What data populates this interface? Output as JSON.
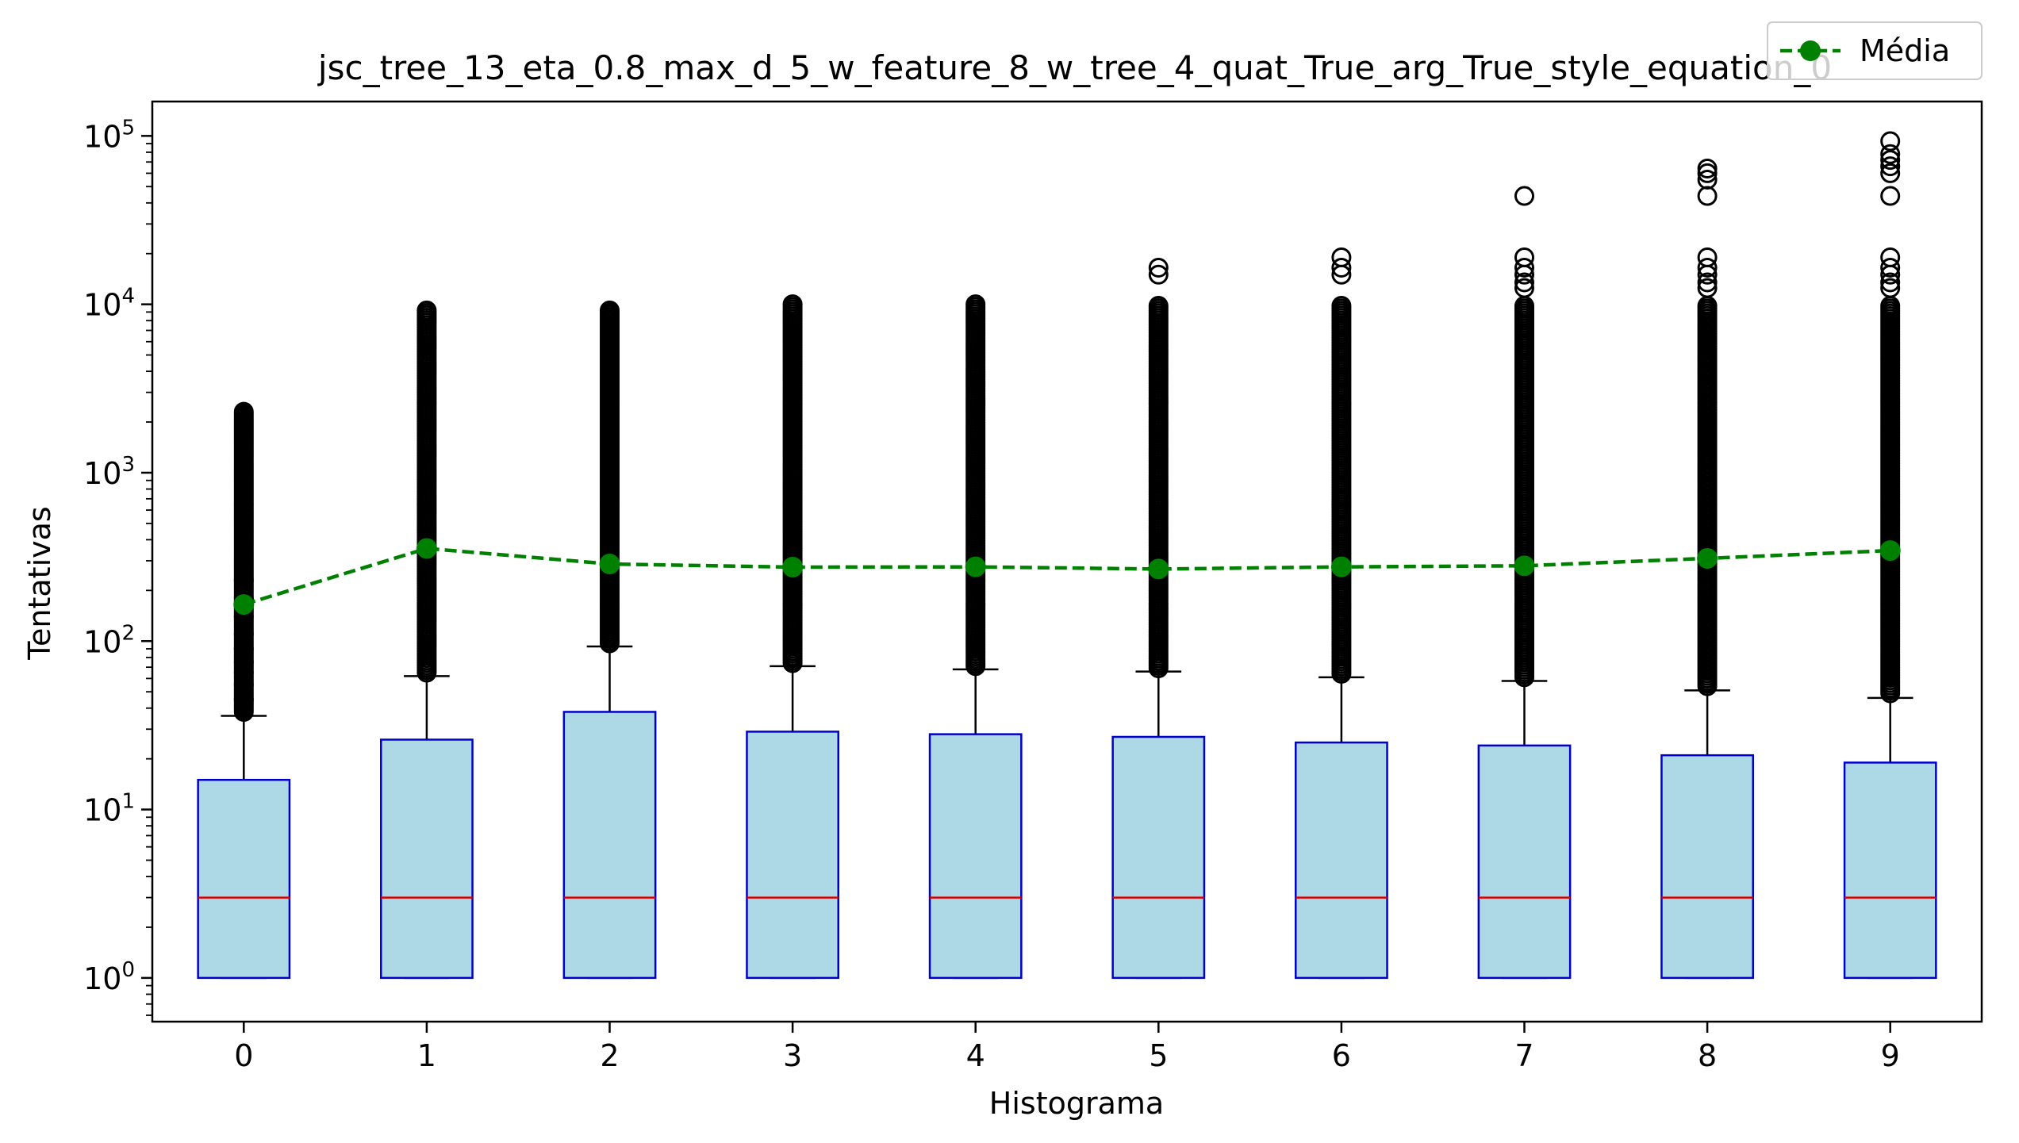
{
  "chart_data": {
    "type": "box",
    "title": "jsc_tree_13_eta_0.8_max_d_5_w_feature_8_w_tree_4_quat_True_arg_True_style_equation_0",
    "xlabel": "Histograma",
    "ylabel": "Tentativas",
    "yscale": "log",
    "ylim": [
      0.55,
      160000
    ],
    "categories": [
      "0",
      "1",
      "2",
      "3",
      "4",
      "5",
      "6",
      "7",
      "8",
      "9"
    ],
    "yticks": [
      {
        "value": 1,
        "base": "10",
        "exp": "0"
      },
      {
        "value": 10,
        "base": "10",
        "exp": "1"
      },
      {
        "value": 100,
        "base": "10",
        "exp": "2"
      },
      {
        "value": 1000,
        "base": "10",
        "exp": "3"
      },
      {
        "value": 10000,
        "base": "10",
        "exp": "4"
      },
      {
        "value": 100000,
        "base": "10",
        "exp": "5"
      }
    ],
    "boxes": [
      {
        "category": "0",
        "min": 1,
        "q1": 1,
        "median": 3,
        "q3": 15,
        "whisker_high": 36,
        "flier_low": 38,
        "flier_high": 2300,
        "sparse_fliers": [
          45,
          55,
          65,
          75,
          90,
          110,
          140,
          180,
          230
        ],
        "extra_fliers": []
      },
      {
        "category": "1",
        "min": 1,
        "q1": 1,
        "median": 3,
        "q3": 26,
        "whisker_high": 62,
        "flier_low": 65,
        "flier_high": 9200,
        "sparse_fliers": [],
        "extra_fliers": []
      },
      {
        "category": "2",
        "min": 1,
        "q1": 1,
        "median": 3,
        "q3": 38,
        "whisker_high": 93,
        "flier_low": 97,
        "flier_high": 9200,
        "sparse_fliers": [],
        "extra_fliers": []
      },
      {
        "category": "3",
        "min": 1,
        "q1": 1,
        "median": 3,
        "q3": 29,
        "whisker_high": 71,
        "flier_low": 74,
        "flier_high": 10000,
        "sparse_fliers": [],
        "extra_fliers": []
      },
      {
        "category": "4",
        "min": 1,
        "q1": 1,
        "median": 3,
        "q3": 28,
        "whisker_high": 68,
        "flier_low": 71,
        "flier_high": 10000,
        "sparse_fliers": [],
        "extra_fliers": []
      },
      {
        "category": "5",
        "min": 1,
        "q1": 1,
        "median": 3,
        "q3": 27,
        "whisker_high": 66,
        "flier_low": 69,
        "flier_high": 9800,
        "sparse_fliers": [],
        "extra_fliers": [
          15000,
          16500
        ]
      },
      {
        "category": "6",
        "min": 1,
        "q1": 1,
        "median": 3,
        "q3": 25,
        "whisker_high": 61,
        "flier_low": 64,
        "flier_high": 9800,
        "sparse_fliers": [],
        "extra_fliers": [
          15000,
          16500,
          19000
        ]
      },
      {
        "category": "7",
        "min": 1,
        "q1": 1,
        "median": 3,
        "q3": 24,
        "whisker_high": 58,
        "flier_low": 61,
        "flier_high": 9800,
        "sparse_fliers": [],
        "extra_fliers": [
          12500,
          13500,
          15000,
          16500,
          19000,
          44000
        ]
      },
      {
        "category": "8",
        "min": 1,
        "q1": 1,
        "median": 3,
        "q3": 21,
        "whisker_high": 51,
        "flier_low": 54,
        "flier_high": 9800,
        "sparse_fliers": [],
        "extra_fliers": [
          12500,
          13500,
          15000,
          16500,
          19000,
          44000,
          55000,
          60000,
          64000
        ]
      },
      {
        "category": "9",
        "min": 1,
        "q1": 1,
        "median": 3,
        "q3": 19,
        "whisker_high": 46,
        "flier_low": 49,
        "flier_high": 9800,
        "sparse_fliers": [],
        "extra_fliers": [
          12500,
          13500,
          15000,
          16500,
          19000,
          44000,
          60000,
          66000,
          72000,
          78000,
          93000
        ]
      }
    ],
    "series": [
      {
        "name": "Média",
        "values": [
          165,
          355,
          287,
          275,
          276,
          268,
          276,
          280,
          310,
          345
        ],
        "color": "#008000",
        "style": "dashed",
        "marker": "circle"
      }
    ],
    "legend": {
      "position": "top-right"
    },
    "grid": false,
    "colors": {
      "box_fill": "#add8e6",
      "box_edge": "#0000cd",
      "median": "#e00000",
      "whisker": "#000000",
      "flier": "#000000",
      "mean": "#008000"
    }
  }
}
